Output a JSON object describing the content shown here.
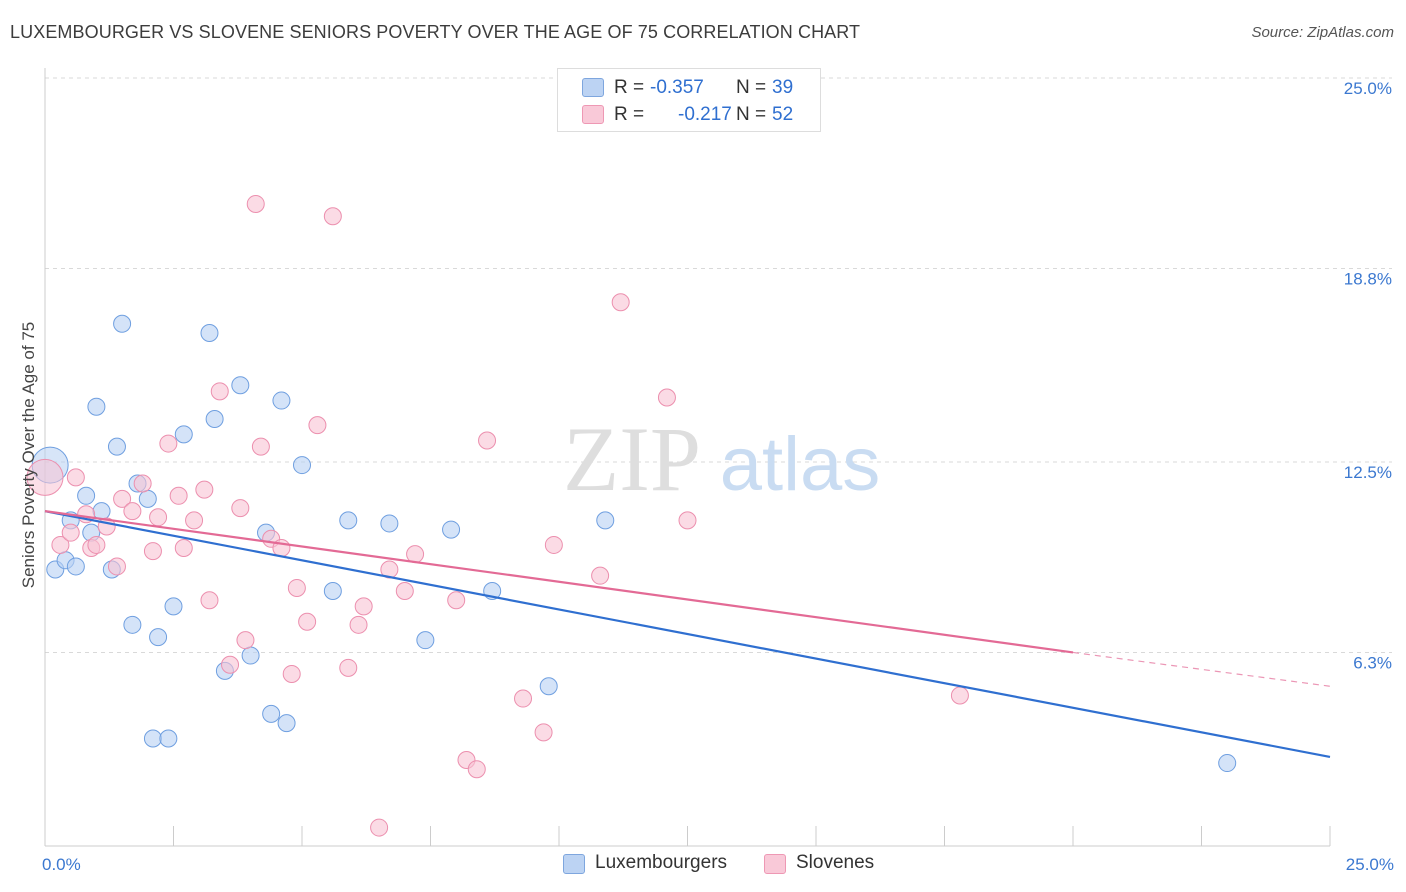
{
  "title": "LUXEMBOURGER VS SLOVENE SENIORS POVERTY OVER THE AGE OF 75 CORRELATION CHART",
  "source": "Source: ZipAtlas.com",
  "watermark": {
    "part1": "ZIP",
    "part2": "atlas"
  },
  "legend": {
    "rows": [
      {
        "r_label": "R =",
        "r_value": "-0.357",
        "n_label": "N =",
        "n_value": "39",
        "color": "#a9c8f0"
      },
      {
        "r_label": "R =",
        "r_value": "-0.217",
        "n_label": "N =",
        "n_value": "52",
        "color": "#f5b8cc"
      }
    ]
  },
  "bottom_legend": [
    {
      "label": "Luxembourgers",
      "color": "#a9c8f0"
    },
    {
      "label": "Slovenes",
      "color": "#f5b8cc"
    }
  ],
  "chart_data": {
    "type": "scatter",
    "title": "LUXEMBOURGER VS SLOVENE SENIORS POVERTY OVER THE AGE OF 75 CORRELATION CHART",
    "xlabel": "",
    "ylabel": "Seniors Poverty Over the Age of 75",
    "xlim": [
      0,
      25
    ],
    "ylim": [
      0,
      25
    ],
    "x_tick_labels": [
      {
        "value": 0,
        "label": "0.0%"
      },
      {
        "value": 25,
        "label": "25.0%"
      }
    ],
    "y_tick_labels": [
      {
        "value": 6.3,
        "label": "6.3%"
      },
      {
        "value": 12.5,
        "label": "12.5%"
      },
      {
        "value": 18.8,
        "label": "18.8%"
      },
      {
        "value": 25.0,
        "label": "25.0%"
      }
    ],
    "grid": true,
    "legend_position": "top-center",
    "series": [
      {
        "name": "Luxembourgers",
        "color": "#6f9fe0",
        "fill": "#b7d0f3",
        "trend": {
          "x": [
            0,
            25
          ],
          "y": [
            10.9,
            2.9
          ],
          "color": "#2f6fd0"
        },
        "points": [
          [
            0.1,
            12.4
          ],
          [
            0.2,
            9.0
          ],
          [
            0.4,
            9.3
          ],
          [
            0.5,
            10.6
          ],
          [
            0.6,
            9.1
          ],
          [
            0.8,
            11.4
          ],
          [
            0.9,
            10.2
          ],
          [
            1.0,
            14.3
          ],
          [
            1.1,
            10.9
          ],
          [
            1.3,
            9.0
          ],
          [
            1.4,
            13.0
          ],
          [
            1.5,
            17.0
          ],
          [
            1.7,
            7.2
          ],
          [
            1.8,
            11.8
          ],
          [
            2.0,
            11.3
          ],
          [
            2.1,
            3.5
          ],
          [
            2.2,
            6.8
          ],
          [
            2.4,
            3.5
          ],
          [
            2.5,
            7.8
          ],
          [
            2.7,
            13.4
          ],
          [
            3.2,
            16.7
          ],
          [
            3.3,
            13.9
          ],
          [
            3.5,
            5.7
          ],
          [
            3.8,
            15.0
          ],
          [
            4.0,
            6.2
          ],
          [
            4.3,
            10.2
          ],
          [
            4.4,
            4.3
          ],
          [
            4.6,
            14.5
          ],
          [
            4.7,
            4.0
          ],
          [
            5.0,
            12.4
          ],
          [
            5.6,
            8.3
          ],
          [
            5.9,
            10.6
          ],
          [
            6.7,
            10.5
          ],
          [
            7.4,
            6.7
          ],
          [
            7.9,
            10.3
          ],
          [
            8.7,
            8.3
          ],
          [
            10.9,
            10.6
          ],
          [
            9.8,
            5.2
          ],
          [
            23.0,
            2.7
          ]
        ]
      },
      {
        "name": "Slovenes",
        "color": "#ec8fae",
        "fill": "#f8c3d4",
        "trend": {
          "x": [
            0,
            20
          ],
          "y": [
            10.9,
            6.3
          ],
          "color": "#e36a95"
        },
        "trend_extension": {
          "x": [
            20,
            25
          ],
          "y": [
            6.3,
            5.2
          ]
        },
        "points": [
          [
            0.0,
            12.0
          ],
          [
            0.3,
            9.8
          ],
          [
            0.5,
            10.2
          ],
          [
            0.6,
            12.0
          ],
          [
            0.8,
            10.8
          ],
          [
            0.9,
            9.7
          ],
          [
            1.0,
            9.8
          ],
          [
            1.2,
            10.4
          ],
          [
            1.4,
            9.1
          ],
          [
            1.5,
            11.3
          ],
          [
            1.7,
            10.9
          ],
          [
            1.9,
            11.8
          ],
          [
            2.1,
            9.6
          ],
          [
            2.2,
            10.7
          ],
          [
            2.4,
            13.1
          ],
          [
            2.6,
            11.4
          ],
          [
            2.7,
            9.7
          ],
          [
            2.9,
            10.6
          ],
          [
            3.1,
            11.6
          ],
          [
            3.2,
            8.0
          ],
          [
            3.4,
            14.8
          ],
          [
            3.6,
            5.9
          ],
          [
            3.8,
            11.0
          ],
          [
            3.9,
            6.7
          ],
          [
            4.1,
            20.9
          ],
          [
            4.2,
            13.0
          ],
          [
            4.4,
            10.0
          ],
          [
            4.6,
            9.7
          ],
          [
            4.8,
            5.6
          ],
          [
            4.9,
            8.4
          ],
          [
            5.1,
            7.3
          ],
          [
            5.3,
            13.7
          ],
          [
            5.6,
            20.5
          ],
          [
            5.9,
            5.8
          ],
          [
            6.1,
            7.2
          ],
          [
            6.2,
            7.8
          ],
          [
            6.5,
            0.6
          ],
          [
            6.7,
            9.0
          ],
          [
            7.0,
            8.3
          ],
          [
            7.2,
            9.5
          ],
          [
            8.0,
            8.0
          ],
          [
            8.2,
            2.8
          ],
          [
            8.4,
            2.5
          ],
          [
            8.6,
            13.2
          ],
          [
            9.3,
            4.8
          ],
          [
            9.7,
            3.7
          ],
          [
            9.9,
            9.8
          ],
          [
            10.8,
            8.8
          ],
          [
            11.2,
            17.7
          ],
          [
            12.1,
            14.6
          ],
          [
            12.5,
            10.6
          ],
          [
            17.8,
            4.9
          ]
        ]
      }
    ]
  }
}
